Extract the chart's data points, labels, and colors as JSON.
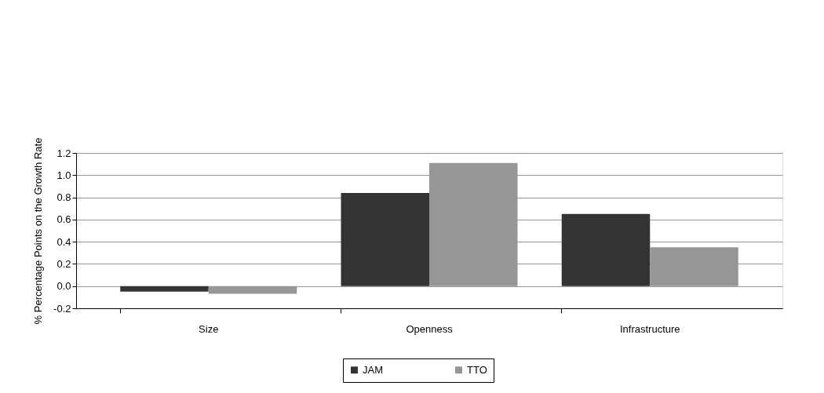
{
  "chart_data": {
    "type": "bar",
    "ylabel": "% Percentage Points on the Growth Rate",
    "categories": [
      "Size",
      "Openness",
      "Infrastructure"
    ],
    "series": [
      {
        "name": "JAM",
        "color": "#333333",
        "values": [
          -0.05,
          0.84,
          0.65
        ]
      },
      {
        "name": "TTO",
        "color": "#969696",
        "values": [
          -0.07,
          1.11,
          0.35
        ]
      }
    ],
    "ylim": [
      -0.2,
      1.2
    ],
    "yticks": [
      {
        "value": -0.2,
        "label": "-0.2"
      },
      {
        "value": 0,
        "label": "0.0"
      },
      {
        "value": 0.2,
        "label": "0.2"
      },
      {
        "value": 0.4,
        "label": "0.4"
      },
      {
        "value": 0.6,
        "label": "0.6"
      },
      {
        "value": 0.8,
        "label": "0.8"
      },
      {
        "value": 1.0,
        "label": "1.0"
      },
      {
        "value": 1.2,
        "label": "1.2"
      }
    ],
    "grid": "y",
    "legend": "bottom"
  }
}
